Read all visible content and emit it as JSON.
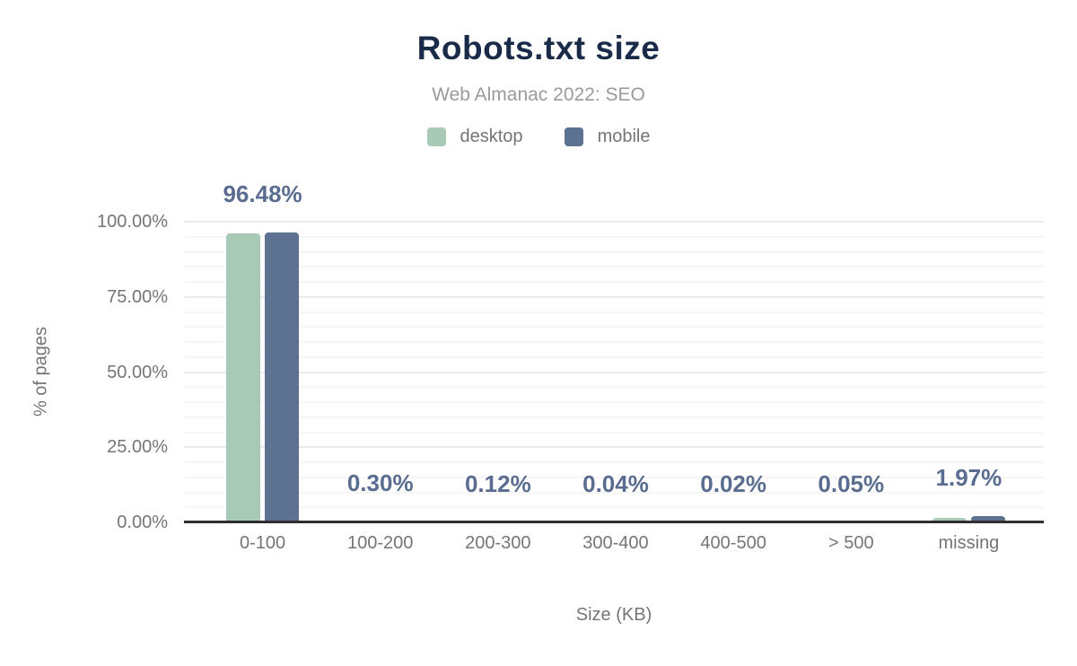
{
  "chart_data": {
    "type": "bar",
    "title": "Robots.txt size",
    "subtitle": "Web Almanac 2022: SEO",
    "xlabel": "Size (KB)",
    "ylabel": "% of pages",
    "categories": [
      "0-100",
      "100-200",
      "200-300",
      "300-400",
      "400-500",
      "> 500",
      "missing"
    ],
    "series": [
      {
        "name": "desktop",
        "color": "#a8c9b5",
        "values": [
          96.1,
          0.3,
          0.12,
          0.04,
          0.02,
          0.05,
          1.5
        ]
      },
      {
        "name": "mobile",
        "color": "#5d7190",
        "values": [
          96.48,
          0.3,
          0.12,
          0.04,
          0.02,
          0.05,
          1.97
        ]
      }
    ],
    "bar_labels": [
      "96.48%",
      "0.30%",
      "0.12%",
      "0.04%",
      "0.02%",
      "0.05%",
      "1.97%"
    ],
    "ylim": [
      0,
      100
    ],
    "yticks": [
      {
        "value": 0,
        "label": "0.00%"
      },
      {
        "value": 25,
        "label": "25.00%"
      },
      {
        "value": 50,
        "label": "50.00%"
      },
      {
        "value": 75,
        "label": "75.00%"
      },
      {
        "value": 100,
        "label": "100.00%"
      }
    ],
    "grid": {
      "minor_step": 5,
      "major_step": 25,
      "minor_color": "#f6f6f6",
      "major_color": "#ebebeb"
    },
    "legend_position": "top",
    "colors": {
      "title": "#1a2b4a",
      "subtitle": "#9a9a9a",
      "axis_text": "#757575",
      "data_label": "#5a6d90",
      "axis_line": "#2f2f2f",
      "background": "#ffffff"
    }
  }
}
